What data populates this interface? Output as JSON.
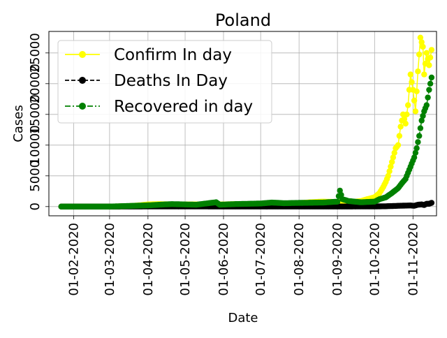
{
  "chart_data": {
    "type": "line",
    "title": "Poland",
    "xlabel": "Date",
    "ylabel": "Cases",
    "x_tick_labels": [
      "01-02-2020",
      "01-03-2020",
      "01-04-2020",
      "01-05-2020",
      "01-06-2020",
      "01-07-2020",
      "01-08-2020",
      "01-09-2020",
      "01-10-2020",
      "01-11-2020"
    ],
    "y_tick_labels": [
      "0",
      "5000",
      "10000",
      "15000",
      "20000",
      "25000"
    ],
    "ylim": [
      -1500,
      28500
    ],
    "xlim": [
      "2020-01-12",
      "2020-11-20"
    ],
    "grid": true,
    "legend_position": "upper left",
    "series": [
      {
        "name": "Confirm In day",
        "color": "#ffff00",
        "line_style": "solid",
        "marker": "circle",
        "points": [
          [
            "2020-01-22",
            0
          ],
          [
            "2020-02-15",
            0
          ],
          [
            "2020-03-01",
            0
          ],
          [
            "2020-03-15",
            50
          ],
          [
            "2020-03-25",
            200
          ],
          [
            "2020-04-01",
            350
          ],
          [
            "2020-04-10",
            400
          ],
          [
            "2020-04-20",
            350
          ],
          [
            "2020-05-01",
            350
          ],
          [
            "2020-05-10",
            350
          ],
          [
            "2020-05-20",
            350
          ],
          [
            "2020-06-01",
            350
          ],
          [
            "2020-06-10",
            400
          ],
          [
            "2020-06-20",
            350
          ],
          [
            "2020-07-01",
            300
          ],
          [
            "2020-07-10",
            300
          ],
          [
            "2020-07-20",
            400
          ],
          [
            "2020-08-01",
            550
          ],
          [
            "2020-08-10",
            700
          ],
          [
            "2020-08-20",
            800
          ],
          [
            "2020-09-01",
            750
          ],
          [
            "2020-09-10",
            650
          ],
          [
            "2020-09-20",
            900
          ],
          [
            "2020-09-25",
            1200
          ],
          [
            "2020-10-01",
            1500
          ],
          [
            "2020-10-05",
            2200
          ],
          [
            "2020-10-08",
            3200
          ],
          [
            "2020-10-10",
            4000
          ],
          [
            "2020-10-12",
            5000
          ],
          [
            "2020-10-14",
            6500
          ],
          [
            "2020-10-16",
            8000
          ],
          [
            "2020-10-18",
            9500
          ],
          [
            "2020-10-20",
            10000
          ],
          [
            "2020-10-22",
            13000
          ],
          [
            "2020-10-24",
            15000
          ],
          [
            "2020-10-26",
            13500
          ],
          [
            "2020-10-28",
            16500
          ],
          [
            "2020-10-30",
            21500
          ],
          [
            "2020-11-01",
            19000
          ],
          [
            "2020-11-03",
            15500
          ],
          [
            "2020-11-05",
            22000
          ],
          [
            "2020-11-07",
            27500
          ],
          [
            "2020-11-09",
            26000
          ],
          [
            "2020-11-10",
            21500
          ],
          [
            "2020-11-12",
            25000
          ],
          [
            "2020-11-14",
            23000
          ],
          [
            "2020-11-16",
            25500
          ]
        ]
      },
      {
        "name": "Deaths In Day",
        "color": "#000000",
        "line_style": "dashed",
        "marker": "circle",
        "points": [
          [
            "2020-01-22",
            0
          ],
          [
            "2020-03-01",
            0
          ],
          [
            "2020-04-01",
            20
          ],
          [
            "2020-05-01",
            20
          ],
          [
            "2020-06-01",
            15
          ],
          [
            "2020-07-01",
            10
          ],
          [
            "2020-08-01",
            10
          ],
          [
            "2020-09-01",
            15
          ],
          [
            "2020-10-01",
            20
          ],
          [
            "2020-10-10",
            50
          ],
          [
            "2020-10-20",
            120
          ],
          [
            "2020-10-25",
            150
          ],
          [
            "2020-10-30",
            180
          ],
          [
            "2020-11-02",
            120
          ],
          [
            "2020-11-05",
            300
          ],
          [
            "2020-11-08",
            350
          ],
          [
            "2020-11-10",
            250
          ],
          [
            "2020-11-12",
            450
          ],
          [
            "2020-11-14",
            450
          ],
          [
            "2020-11-16",
            600
          ]
        ]
      },
      {
        "name": "Recovered in day",
        "color": "#008000",
        "line_style": "dashdot",
        "marker": "circle",
        "points": [
          [
            "2020-01-22",
            0
          ],
          [
            "2020-03-01",
            0
          ],
          [
            "2020-04-01",
            200
          ],
          [
            "2020-04-20",
            400
          ],
          [
            "2020-05-10",
            300
          ],
          [
            "2020-05-26",
            700
          ],
          [
            "2020-05-29",
            300
          ],
          [
            "2020-06-10",
            400
          ],
          [
            "2020-07-01",
            500
          ],
          [
            "2020-07-10",
            650
          ],
          [
            "2020-07-20",
            550
          ],
          [
            "2020-08-01",
            600
          ],
          [
            "2020-08-20",
            650
          ],
          [
            "2020-09-01",
            800
          ],
          [
            "2020-09-03",
            2600
          ],
          [
            "2020-09-05",
            1200
          ],
          [
            "2020-09-10",
            900
          ],
          [
            "2020-09-20",
            700
          ],
          [
            "2020-10-01",
            800
          ],
          [
            "2020-10-05",
            1200
          ],
          [
            "2020-10-10",
            1500
          ],
          [
            "2020-10-15",
            2200
          ],
          [
            "2020-10-20",
            3000
          ],
          [
            "2020-10-23",
            3800
          ],
          [
            "2020-10-26",
            4500
          ],
          [
            "2020-10-28",
            5500
          ],
          [
            "2020-10-31",
            7000
          ],
          [
            "2020-11-02",
            8000
          ],
          [
            "2020-11-04",
            9500
          ],
          [
            "2020-11-06",
            11500
          ],
          [
            "2020-11-08",
            14000
          ],
          [
            "2020-11-10",
            15500
          ],
          [
            "2020-11-12",
            16500
          ],
          [
            "2020-11-14",
            19000
          ],
          [
            "2020-11-16",
            21000
          ]
        ]
      }
    ]
  }
}
